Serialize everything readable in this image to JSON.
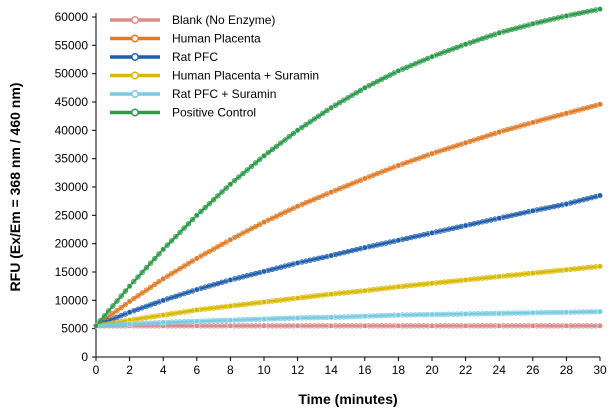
{
  "chart_data": {
    "type": "line",
    "xlabel": "Time (minutes)",
    "ylabel": "RFU (Ex/Em = 368 nm / 460 nm)",
    "xlim": [
      0,
      30
    ],
    "ylim": [
      0,
      60000
    ],
    "xticks": [
      0,
      2,
      4,
      6,
      8,
      10,
      12,
      14,
      16,
      18,
      20,
      22,
      24,
      26,
      28,
      30
    ],
    "yticks": [
      0,
      5000,
      10000,
      15000,
      20000,
      25000,
      30000,
      35000,
      40000,
      45000,
      50000,
      55000,
      60000
    ],
    "grid": false,
    "legend_position": "top-left",
    "x": [
      0,
      2,
      4,
      6,
      8,
      10,
      12,
      14,
      16,
      18,
      20,
      22,
      24,
      26,
      28,
      30
    ],
    "series": [
      {
        "name": "Blank (No Enzyme)",
        "color": "#d98c8c",
        "values": [
          5500,
          5500,
          5500,
          5500,
          5500,
          5500,
          5500,
          5500,
          5500,
          5500,
          5500,
          5500,
          5500,
          5500,
          5500,
          5500
        ]
      },
      {
        "name": "Human Placenta",
        "color": "#e07b27",
        "values": [
          5500,
          9800,
          13800,
          17400,
          20700,
          23800,
          26600,
          29100,
          31500,
          33800,
          35900,
          37800,
          39700,
          41400,
          43000,
          44600
        ]
      },
      {
        "name": "Rat PFC",
        "color": "#1f5fad",
        "values": [
          5500,
          7900,
          10000,
          11900,
          13600,
          15100,
          16600,
          17900,
          19300,
          20600,
          21900,
          23200,
          24500,
          25800,
          27000,
          28500
        ]
      },
      {
        "name": "Human Placenta + Suramin",
        "color": "#d9b900",
        "values": [
          5500,
          6500,
          7400,
          8300,
          9000,
          9700,
          10400,
          11100,
          11700,
          12400,
          13000,
          13600,
          14200,
          14800,
          15400,
          16000
        ]
      },
      {
        "name": "Rat PFC + Suramin",
        "color": "#79cbe3",
        "values": [
          5500,
          5800,
          6100,
          6300,
          6500,
          6700,
          6900,
          7000,
          7200,
          7400,
          7500,
          7600,
          7700,
          7800,
          7900,
          8000
        ]
      },
      {
        "name": "Positive Control",
        "color": "#2e9a4a",
        "values": [
          5500,
          12500,
          19000,
          25000,
          30500,
          35500,
          40000,
          44000,
          47500,
          50500,
          53000,
          55200,
          57200,
          58800,
          60200,
          61400
        ]
      }
    ]
  }
}
